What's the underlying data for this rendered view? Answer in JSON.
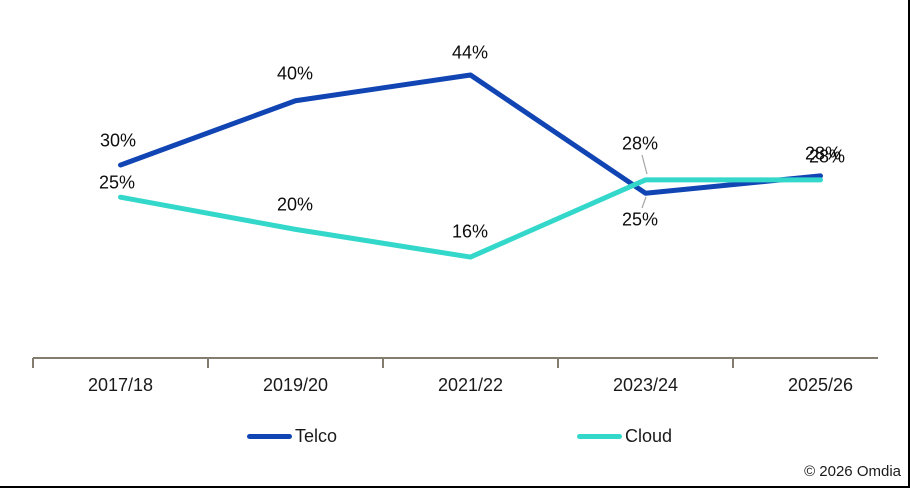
{
  "chart_data": {
    "type": "line",
    "categories": [
      "2017/18",
      "2019/20",
      "2021/22",
      "2023/24",
      "2025/26"
    ],
    "series": [
      {
        "name": "Telco",
        "color": "#1145B4",
        "values": [
          30,
          40,
          44,
          25,
          28
        ],
        "labels": [
          "30%",
          "40%",
          "44%",
          "25%",
          "28%"
        ]
      },
      {
        "name": "Cloud",
        "color": "#33D8CB",
        "values": [
          25,
          20,
          16,
          28,
          28
        ],
        "labels": [
          "25%",
          "20%",
          "16%",
          "28%",
          "28%"
        ]
      }
    ],
    "ylim": [
      0,
      50
    ],
    "grid": false,
    "legend_position": "bottom",
    "axis_color": "#857C70",
    "data_label_color": "#0D0D0D",
    "axis_label_color": "#1A1A1A",
    "leader_line_color": "#A6A6A6"
  },
  "footer": {
    "copyright": "© 2026 Omdia"
  }
}
